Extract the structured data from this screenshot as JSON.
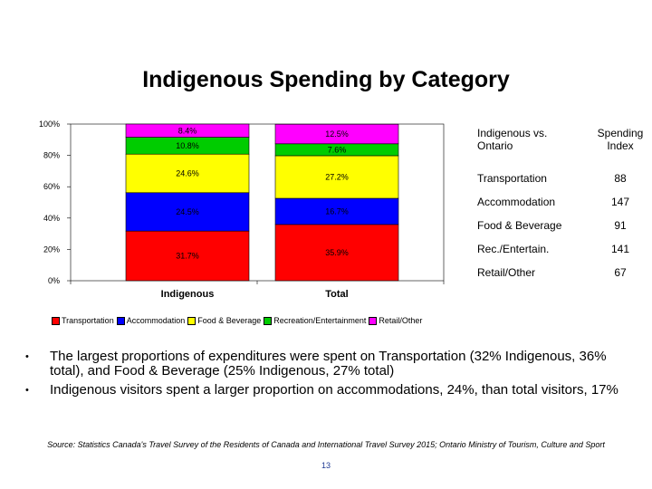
{
  "chart_data": {
    "type": "bar",
    "stacked": true,
    "percent": true,
    "title": "Indigenous Spending by Category",
    "categories": [
      "Indigenous",
      "Total"
    ],
    "yticks": [
      "0%",
      "20%",
      "40%",
      "60%",
      "80%",
      "100%"
    ],
    "ylim": [
      0,
      100
    ],
    "legend_placement": "bottom",
    "series": [
      {
        "name": "Transportation",
        "color": "#ff0000",
        "values": [
          31.7,
          35.9
        ],
        "labels": [
          "31.7%",
          "35.9%"
        ]
      },
      {
        "name": "Accommodation",
        "color": "#0000ff",
        "values": [
          24.5,
          16.7
        ],
        "labels": [
          "24.5%",
          "16.7%"
        ]
      },
      {
        "name": "Food & Beverage",
        "color": "#ffff00",
        "values": [
          24.6,
          27.2
        ],
        "labels": [
          "24.6%",
          "27.2%"
        ]
      },
      {
        "name": "Recreation/Entertainment",
        "color": "#00cc00",
        "values": [
          10.8,
          7.6
        ],
        "labels": [
          "10.8%",
          "7.6%"
        ]
      },
      {
        "name": "Retail/Other",
        "color": "#ff00ff",
        "values": [
          8.4,
          12.5
        ],
        "labels": [
          "8.4%",
          "12.5%"
        ]
      }
    ]
  },
  "index_table": {
    "header_left": "Indigenous vs. Ontario",
    "header_right": "Spending Index",
    "rows": [
      {
        "label": "Transportation",
        "value": "88"
      },
      {
        "label": "Accommodation",
        "value": "147"
      },
      {
        "label": "Food & Beverage",
        "value": "91"
      },
      {
        "label": "Rec./Entertain.",
        "value": "141"
      },
      {
        "label": "Retail/Other",
        "value": "67"
      }
    ]
  },
  "bullets": [
    "The largest proportions of expenditures were spent on Transportation (32% Indigenous, 36% total), and Food & Beverage (25% Indigenous, 27% total)",
    "Indigenous visitors spent a larger proportion on accommodations, 24%, than total visitors, 17%"
  ],
  "bullet_glyph": "•",
  "source": "Source: Statistics Canada's Travel Survey of the Residents of Canada and International Travel Survey 2015; Ontario Ministry of Tourism, Culture and Sport",
  "page_number": "13"
}
